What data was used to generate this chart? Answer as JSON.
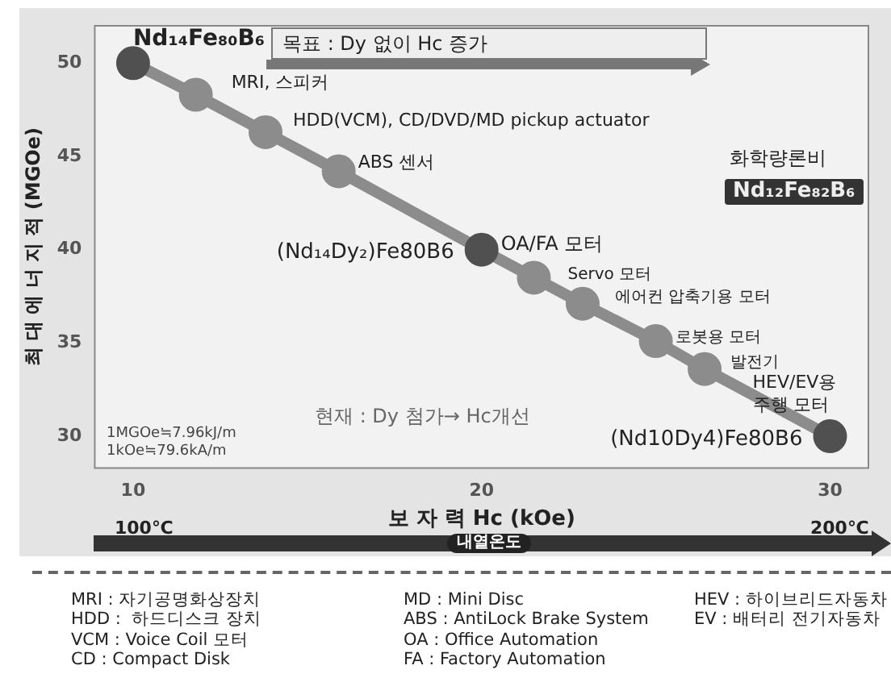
{
  "chart_data": {
    "type": "line",
    "xlabel": "보 자 력 Hc (kOe)",
    "ylabel": "최 대 에 너 지 적 (MGOe)",
    "xlim": [
      8.9,
      31.1
    ],
    "ylim": [
      28.3,
      52
    ],
    "xticks": [
      10,
      20,
      30
    ],
    "yticks": [
      30,
      35,
      40,
      45,
      50
    ],
    "marker": "circle",
    "series": [
      {
        "color": "#8c8c8c",
        "x": [
          10,
          11.8,
          13.8,
          15.9,
          20,
          21.5,
          22.9,
          25,
          26.4,
          30
        ],
        "values": [
          50,
          48.3,
          46.3,
          44.2,
          40,
          38.5,
          37.1,
          35.1,
          33.6,
          30
        ],
        "colors": [
          "#505050",
          "#8c8c8c",
          "#8c8c8c",
          "#8c8c8c",
          "#505050",
          "#8c8c8c",
          "#8c8c8c",
          "#8c8c8c",
          "#8c8c8c",
          "#505050"
        ]
      }
    ],
    "annotations": [
      {
        "text": "Nd₁₄Fe₈₀B₆",
        "x": 10,
        "y": 50
      },
      {
        "text": "MRI, 스피커",
        "x": 11.8,
        "y": 48.3
      },
      {
        "text": "HDD(VCM), CD/DVD/MD pickup actuator",
        "x": 13.8,
        "y": 46.3
      },
      {
        "text": "ABS 센서",
        "x": 15.9,
        "y": 44.2
      },
      {
        "text": "(Nd₁₄Dy₂)Fe80B6",
        "x": 20,
        "y": 40
      },
      {
        "text": "OA/FA 모터",
        "x": 20,
        "y": 40
      },
      {
        "text": "Servo 모터",
        "x": 21.5,
        "y": 38.5
      },
      {
        "text": "에어컨 압축기용 모터",
        "x": 22.9,
        "y": 37.1
      },
      {
        "text": "로봇용 모터",
        "x": 25,
        "y": 35.1
      },
      {
        "text": "발전기",
        "x": 26.4,
        "y": 33.6
      },
      {
        "text": "HEV/EV용\n주행 모터",
        "x": 30,
        "y": 30
      },
      {
        "text": "(Nd10Dy4)Fe80B6",
        "x": 30,
        "y": 30
      },
      "목표 : Dy 없이 Hc 증가",
      "화학량론비",
      "Nd₁₂Fe₈₂B₆",
      "현재 : Dy 첨가→ Hc개선",
      "1MGOe≒7.96kJ/m",
      "1kOe≒79.6kA/m",
      "100℃",
      "200℃",
      "내열온도",
      "MRI : 자기공명화상장치",
      "HDD :  하드디스크 장치",
      "VCM : Voice Coil 모터",
      "CD : Compact Disk",
      "MD : Mini Disc",
      "ABS : AntiLock Brake System",
      "OA : Office Automation",
      "FA : Factory Automation",
      "HEV : 하이브리드자동차",
      "EV : 배터리 전기자동차"
    ]
  }
}
